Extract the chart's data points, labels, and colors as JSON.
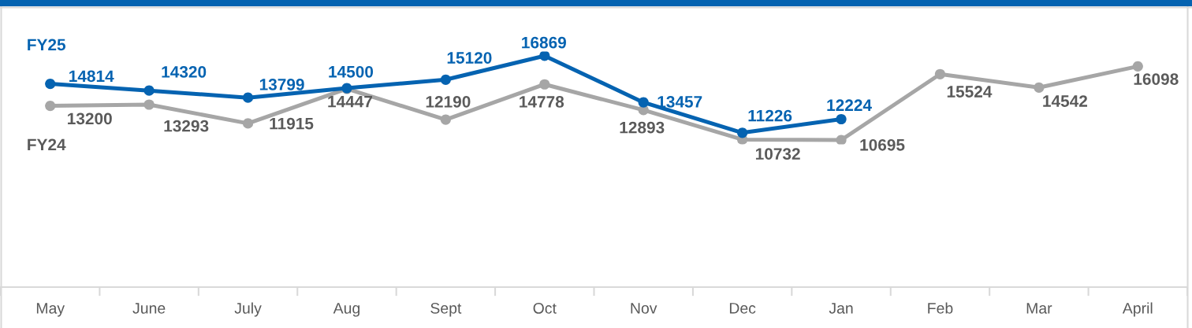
{
  "chart_data": {
    "type": "line",
    "categories": [
      "May",
      "June",
      "July",
      "Aug",
      "Sept",
      "Oct",
      "Nov",
      "Dec",
      "Jan",
      "Feb",
      "Mar",
      "April"
    ],
    "series": [
      {
        "name": "FY25",
        "color": "#0563b1",
        "values": [
          14814,
          14320,
          13799,
          14500,
          15120,
          16869,
          13457,
          11226,
          12224,
          null,
          null,
          null
        ]
      },
      {
        "name": "FY24",
        "color": "#a6a6a6",
        "values": [
          13200,
          13293,
          11915,
          14447,
          12190,
          14778,
          12893,
          10732,
          10695,
          15524,
          14542,
          16098
        ]
      }
    ],
    "tick_labels": "x",
    "data_labels": true,
    "marker": "circle",
    "line_style": "solid",
    "grid": false,
    "legend": false
  }
}
